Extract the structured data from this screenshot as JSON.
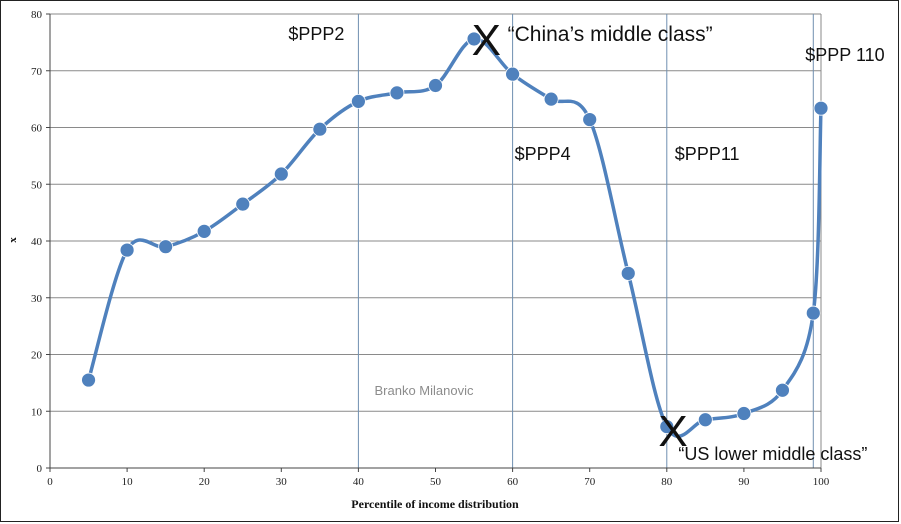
{
  "chart_data": {
    "type": "line",
    "title": "",
    "xlabel": "Percentile of income distribution",
    "ylabel": "x",
    "xlim": [
      0,
      100
    ],
    "ylim": [
      0,
      80
    ],
    "xticks": [
      0,
      10,
      20,
      30,
      40,
      50,
      60,
      70,
      80,
      90,
      100
    ],
    "yticks": [
      0,
      10,
      20,
      30,
      40,
      50,
      60,
      70,
      80
    ],
    "grid": "horizontal",
    "series": [
      {
        "name": "",
        "color": "#4f81bd",
        "x": [
          5,
          10,
          15,
          20,
          25,
          30,
          35,
          40,
          45,
          50,
          55,
          60,
          65,
          70,
          75,
          80,
          85,
          90,
          95,
          99,
          100
        ],
        "y": [
          15.5,
          38.4,
          39.0,
          41.7,
          46.5,
          51.8,
          59.7,
          64.6,
          66.1,
          67.4,
          75.6,
          69.4,
          65.0,
          61.4,
          34.3,
          7.3,
          8.5,
          9.6,
          13.7,
          27.3,
          63.4
        ]
      }
    ],
    "reference_lines": [
      {
        "x": 40,
        "label": "$PPP2"
      },
      {
        "x": 60,
        "label": "$PPP4"
      },
      {
        "x": 80,
        "label": "$PPP11"
      },
      {
        "x": 99,
        "label": "$PPP 110"
      }
    ],
    "annotations": [
      {
        "x": 56.5,
        "y": 75.6,
        "marker": "X",
        "label": "“China’s middle class”"
      },
      {
        "x": 81.5,
        "y": 9.5,
        "marker": "X",
        "label": "“US lower middle class”"
      }
    ],
    "watermark": "Branko Milanovic"
  }
}
